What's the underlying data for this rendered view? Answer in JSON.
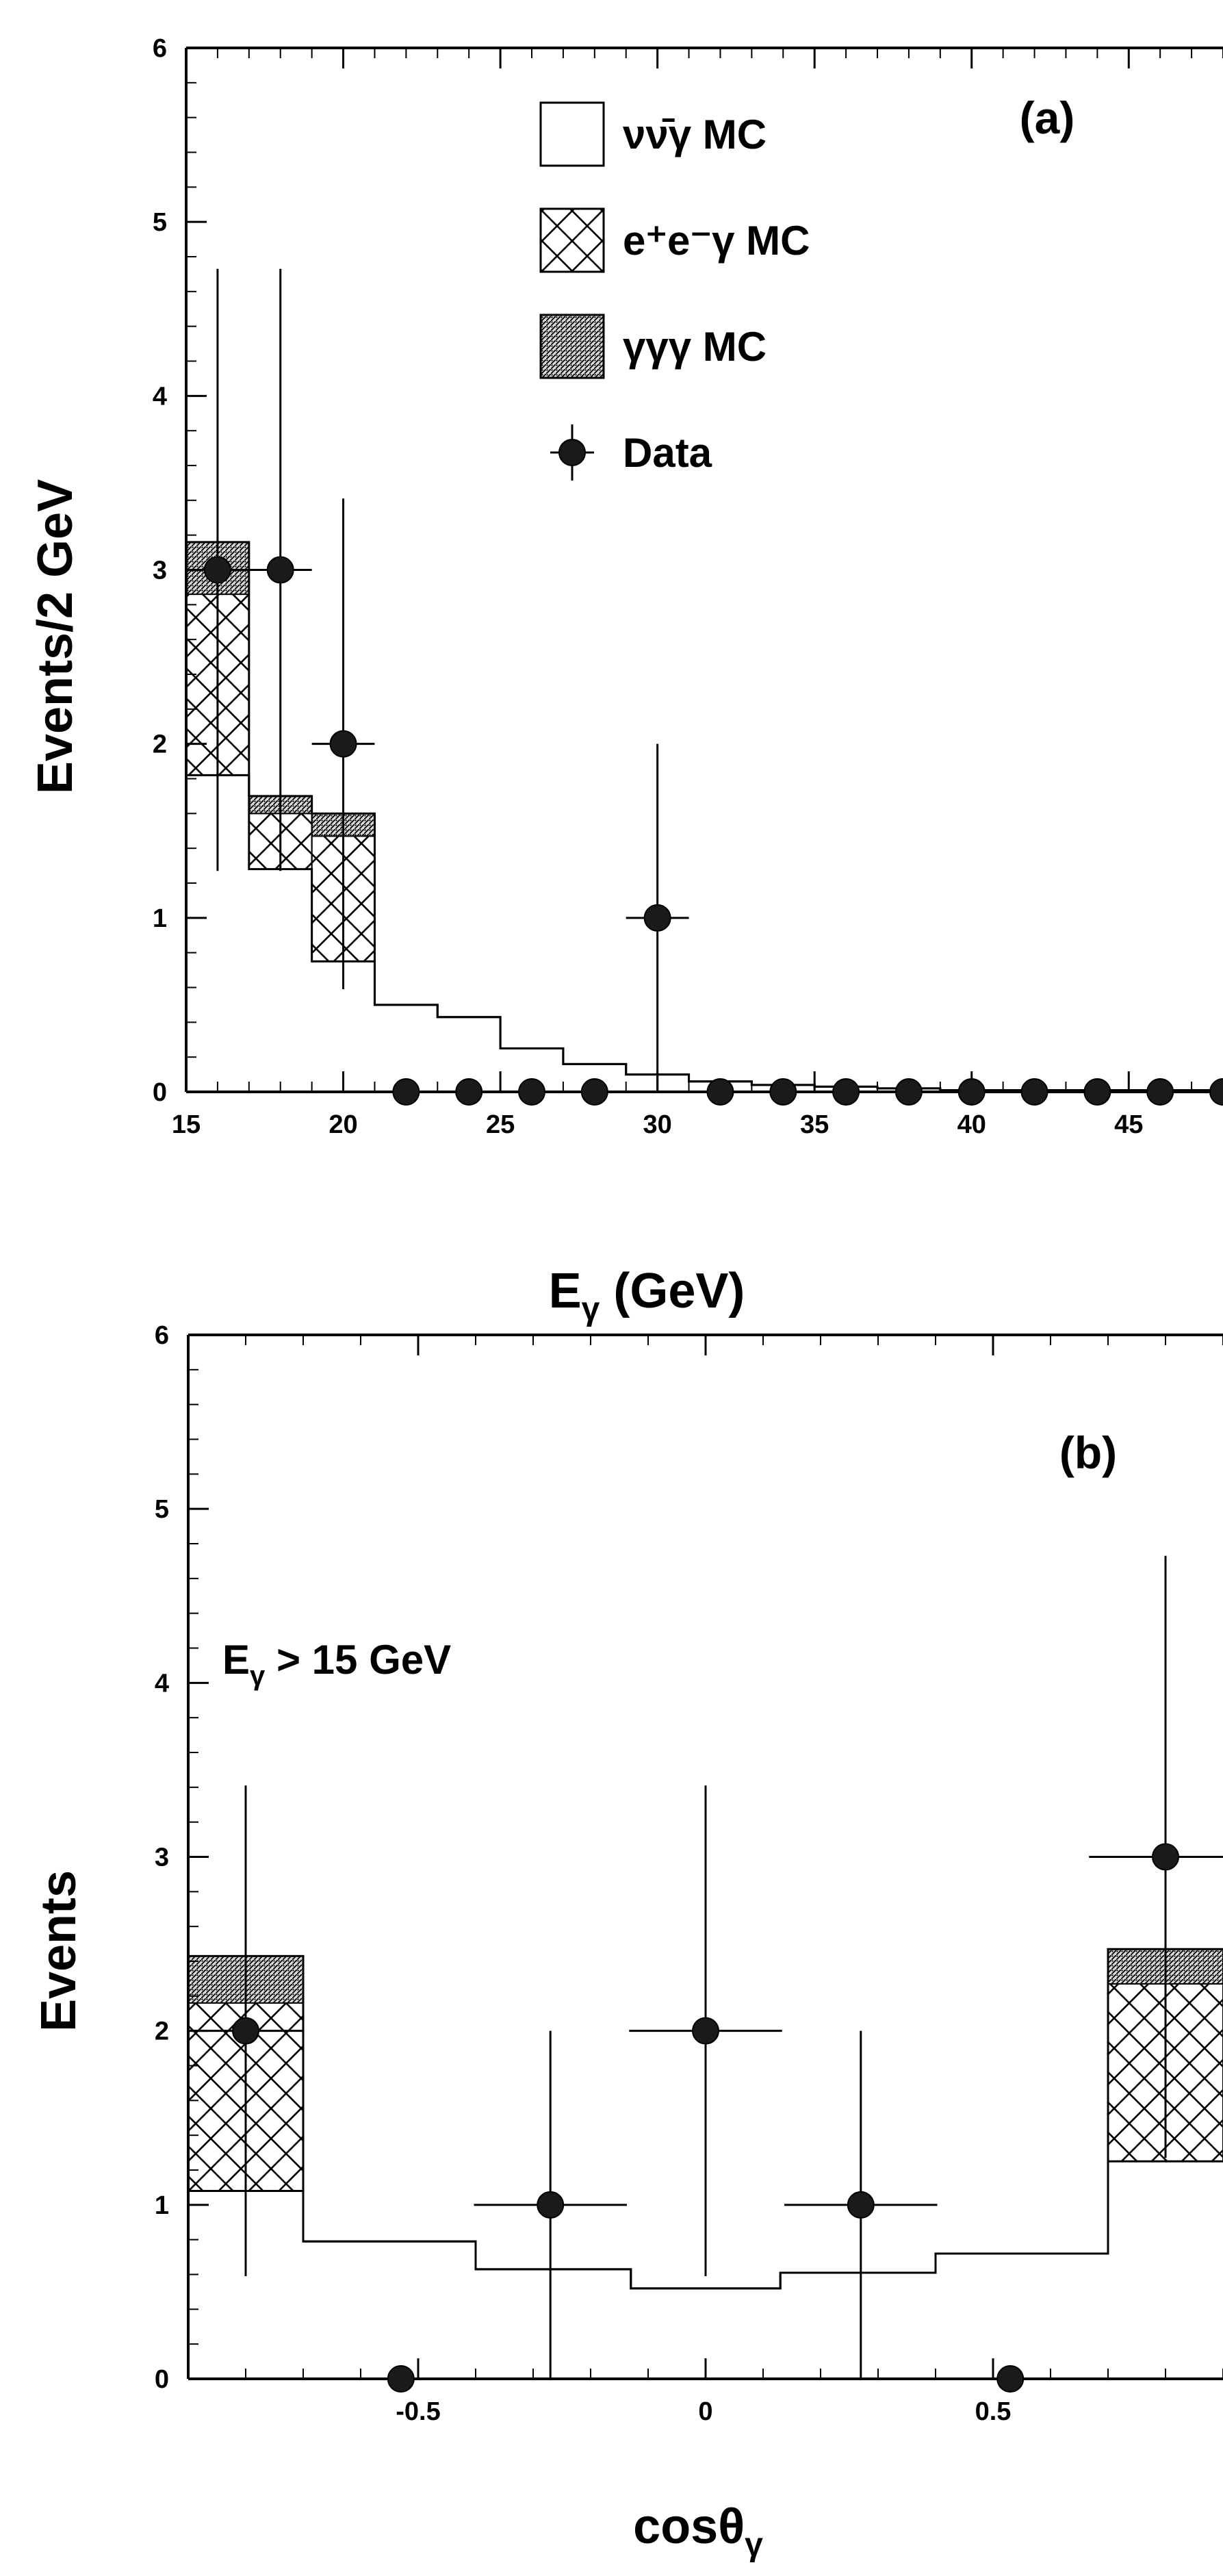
{
  "chart_data": [
    {
      "type": "bar",
      "panel_label": "(a)",
      "xlabel": "E",
      "xlabel_sub": "γ",
      "xlabel_unit": " (GeV)",
      "ylabel": "Events/2 GeV",
      "xlim": [
        15,
        48
      ],
      "ylim": [
        0,
        6
      ],
      "xticks": [
        15,
        20,
        25,
        30,
        35,
        40,
        45
      ],
      "yticks": [
        0,
        1,
        2,
        3,
        4,
        5,
        6
      ],
      "legend_position": "top-center",
      "legend": [
        {
          "label": "νν̄γ MC",
          "style": "open"
        },
        {
          "label": "e⁺e⁻γ MC",
          "style": "crosshatch"
        },
        {
          "label": "γγγ MC",
          "style": "dense"
        },
        {
          "label": "Data",
          "style": "marker"
        }
      ],
      "mc_bins": [
        {
          "x0": 15,
          "x1": 17,
          "nunu": 1.82,
          "eeg": 1.04,
          "ggg": 0.3
        },
        {
          "x0": 17,
          "x1": 19,
          "nunu": 1.28,
          "eeg": 0.32,
          "ggg": 0.1
        },
        {
          "x0": 19,
          "x1": 21,
          "nunu": 0.75,
          "eeg": 0.72,
          "ggg": 0.13
        },
        {
          "x0": 21,
          "x1": 23,
          "nunu": 0.5,
          "eeg": 0,
          "ggg": 0
        },
        {
          "x0": 23,
          "x1": 25,
          "nunu": 0.43,
          "eeg": 0,
          "ggg": 0
        },
        {
          "x0": 25,
          "x1": 27,
          "nunu": 0.25,
          "eeg": 0,
          "ggg": 0
        },
        {
          "x0": 27,
          "x1": 29,
          "nunu": 0.16,
          "eeg": 0,
          "ggg": 0
        },
        {
          "x0": 29,
          "x1": 31,
          "nunu": 0.1,
          "eeg": 0,
          "ggg": 0
        },
        {
          "x0": 31,
          "x1": 33,
          "nunu": 0.06,
          "eeg": 0,
          "ggg": 0
        },
        {
          "x0": 33,
          "x1": 35,
          "nunu": 0.04,
          "eeg": 0,
          "ggg": 0
        },
        {
          "x0": 35,
          "x1": 37,
          "nunu": 0.03,
          "eeg": 0,
          "ggg": 0
        },
        {
          "x0": 37,
          "x1": 39,
          "nunu": 0.02,
          "eeg": 0,
          "ggg": 0
        },
        {
          "x0": 39,
          "x1": 41,
          "nunu": 0.01,
          "eeg": 0,
          "ggg": 0
        },
        {
          "x0": 41,
          "x1": 43,
          "nunu": 0.01,
          "eeg": 0,
          "ggg": 0
        },
        {
          "x0": 43,
          "x1": 45,
          "nunu": 0.01,
          "eeg": 0,
          "ggg": 0
        },
        {
          "x0": 45,
          "x1": 47,
          "nunu": 0.01,
          "eeg": 0,
          "ggg": 0
        },
        {
          "x0": 47,
          "x1": 48,
          "nunu": 0.01,
          "eeg": 0,
          "ggg": 0
        }
      ],
      "data_points": [
        {
          "x": 16,
          "y": 3,
          "xerr": 1,
          "yerr_lo": 1.73,
          "yerr_hi": 1.73
        },
        {
          "x": 18,
          "y": 3,
          "xerr": 1,
          "yerr_lo": 1.73,
          "yerr_hi": 1.73
        },
        {
          "x": 20,
          "y": 2,
          "xerr": 1,
          "yerr_lo": 1.41,
          "yerr_hi": 1.41
        },
        {
          "x": 22,
          "y": 0
        },
        {
          "x": 24,
          "y": 0
        },
        {
          "x": 26,
          "y": 0
        },
        {
          "x": 28,
          "y": 0
        },
        {
          "x": 30,
          "y": 1,
          "xerr": 1,
          "yerr_lo": 1,
          "yerr_hi": 1
        },
        {
          "x": 32,
          "y": 0
        },
        {
          "x": 34,
          "y": 0
        },
        {
          "x": 36,
          "y": 0
        },
        {
          "x": 38,
          "y": 0
        },
        {
          "x": 40,
          "y": 0
        },
        {
          "x": 42,
          "y": 0
        },
        {
          "x": 44,
          "y": 0
        },
        {
          "x": 46,
          "y": 0
        },
        {
          "x": 48,
          "y": 0
        }
      ]
    },
    {
      "type": "bar",
      "panel_label": "(b)",
      "annotation": "E",
      "annotation_sub": "γ",
      "annotation_rest": " > 15 GeV",
      "xlabel": "cosθ",
      "xlabel_sub": "γ",
      "ylabel": "Events",
      "xlim": [
        -0.9,
        0.9
      ],
      "ylim": [
        0,
        6
      ],
      "xticks": [
        -0.5,
        0,
        0.5
      ],
      "xticklabels": [
        "-0.5",
        "0",
        "0.5"
      ],
      "yticks": [
        0,
        1,
        2,
        3,
        4,
        5,
        6
      ],
      "mc_bins": [
        {
          "x0": -0.9,
          "x1": -0.7,
          "nunu": 1.08,
          "eeg": 1.08,
          "ggg": 0.27
        },
        {
          "x0": -0.7,
          "x1": -0.4,
          "nunu": 0.79,
          "eeg": 0,
          "ggg": 0
        },
        {
          "x0": -0.4,
          "x1": -0.13,
          "nunu": 0.63,
          "eeg": 0,
          "ggg": 0
        },
        {
          "x0": -0.13,
          "x1": 0.13,
          "nunu": 0.52,
          "eeg": 0,
          "ggg": 0
        },
        {
          "x0": 0.13,
          "x1": 0.4,
          "nunu": 0.61,
          "eeg": 0,
          "ggg": 0
        },
        {
          "x0": 0.4,
          "x1": 0.7,
          "nunu": 0.72,
          "eeg": 0,
          "ggg": 0
        },
        {
          "x0": 0.7,
          "x1": 0.9,
          "nunu": 1.25,
          "eeg": 1.02,
          "ggg": 0.2
        }
      ],
      "data_points": [
        {
          "x": -0.8,
          "y": 2,
          "xerr": 0.1,
          "yerr_lo": 1.41,
          "yerr_hi": 1.41
        },
        {
          "x": -0.53,
          "y": 0
        },
        {
          "x": -0.27,
          "y": 1,
          "xerr": 0.133,
          "yerr_lo": 1,
          "yerr_hi": 1
        },
        {
          "x": 0,
          "y": 2,
          "xerr": 0.133,
          "yerr_lo": 1.41,
          "yerr_hi": 1.41
        },
        {
          "x": 0.27,
          "y": 1,
          "xerr": 0.133,
          "yerr_lo": 1,
          "yerr_hi": 1
        },
        {
          "x": 0.53,
          "y": 0
        },
        {
          "x": 0.8,
          "y": 3,
          "xerr": 0.133,
          "yerr_lo": 1.73,
          "yerr_hi": 1.73
        }
      ]
    }
  ]
}
